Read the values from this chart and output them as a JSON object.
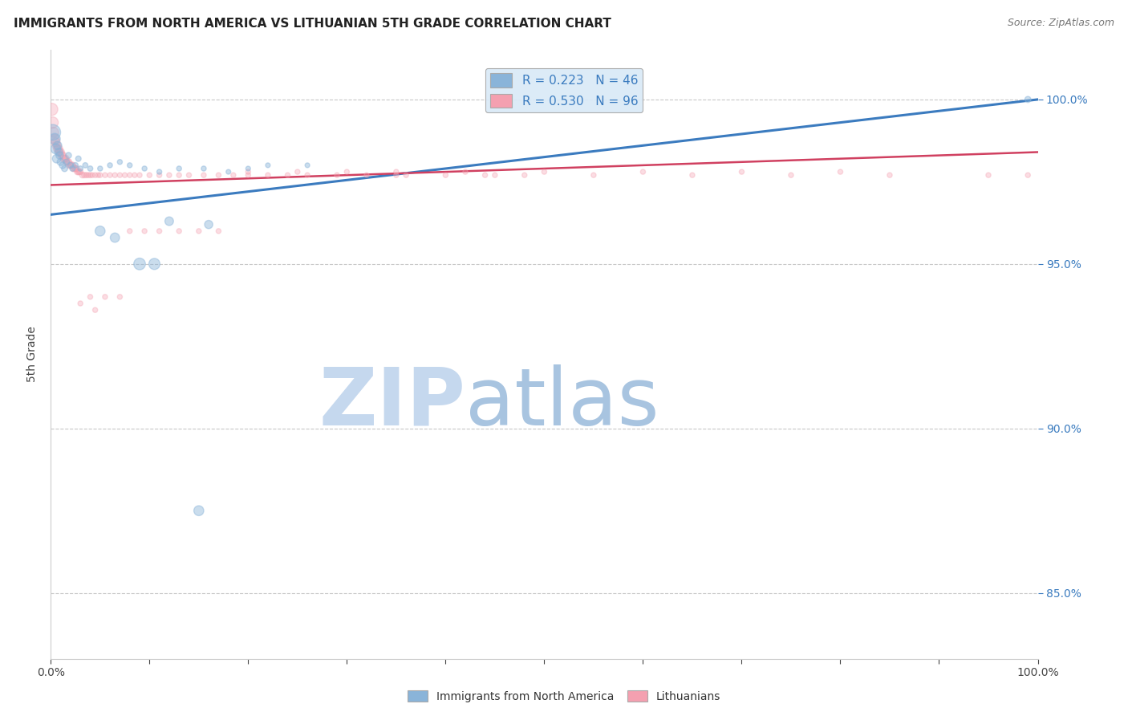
{
  "title": "IMMIGRANTS FROM NORTH AMERICA VS LITHUANIAN 5TH GRADE CORRELATION CHART",
  "source": "Source: ZipAtlas.com",
  "ylabel": "5th Grade",
  "xlim": [
    0.0,
    1.0
  ],
  "ylim": [
    0.83,
    1.015
  ],
  "xticks": [
    0.0,
    0.1,
    0.2,
    0.3,
    0.4,
    0.5,
    0.6,
    0.7,
    0.8,
    0.9,
    1.0
  ],
  "xticklabels": [
    "0.0%",
    "",
    "",
    "",
    "",
    "",
    "",
    "",
    "",
    "",
    "100.0%"
  ],
  "yticks": [
    0.85,
    0.9,
    0.95,
    1.0
  ],
  "yticklabels": [
    "85.0%",
    "90.0%",
    "95.0%",
    "100.0%"
  ],
  "blue_color": "#8ab4d9",
  "pink_color": "#f4a0b0",
  "blue_line_color": "#3b7bbf",
  "pink_line_color": "#d04060",
  "legend_box_color": "#daeaf7",
  "grid_color": "#c8c8c8",
  "watermark_zip_color": "#c5d8ee",
  "watermark_atlas_color": "#b8cee8",
  "r_blue": 0.223,
  "n_blue": 46,
  "r_pink": 0.53,
  "n_pink": 96,
  "blue_line_y_start": 0.965,
  "blue_line_y_end": 1.0,
  "pink_line_y_start": 0.974,
  "pink_line_y_end": 0.984,
  "blue_scatter_x": [
    0.002,
    0.004,
    0.005,
    0.006,
    0.007,
    0.008,
    0.009,
    0.01,
    0.012,
    0.014,
    0.016,
    0.018,
    0.02,
    0.022,
    0.025,
    0.028,
    0.03,
    0.035,
    0.04,
    0.05,
    0.06,
    0.07,
    0.08,
    0.095,
    0.11,
    0.13,
    0.155,
    0.18,
    0.2,
    0.22,
    0.26,
    0.05,
    0.065,
    0.12,
    0.16,
    0.09,
    0.105,
    0.15,
    0.99
  ],
  "blue_scatter_y": [
    0.99,
    0.988,
    0.985,
    0.982,
    0.986,
    0.984,
    0.983,
    0.981,
    0.98,
    0.979,
    0.981,
    0.983,
    0.98,
    0.979,
    0.98,
    0.982,
    0.979,
    0.98,
    0.979,
    0.979,
    0.98,
    0.981,
    0.98,
    0.979,
    0.978,
    0.979,
    0.979,
    0.978,
    0.979,
    0.98,
    0.98,
    0.96,
    0.958,
    0.963,
    0.962,
    0.95,
    0.95,
    0.875,
    1.0
  ],
  "blue_scatter_sizes": [
    200,
    100,
    80,
    60,
    55,
    50,
    45,
    40,
    35,
    30,
    28,
    28,
    26,
    24,
    24,
    24,
    22,
    22,
    22,
    20,
    20,
    20,
    20,
    20,
    20,
    20,
    20,
    18,
    18,
    18,
    18,
    80,
    70,
    60,
    55,
    110,
    100,
    80,
    30
  ],
  "pink_scatter_x": [
    0.001,
    0.002,
    0.003,
    0.004,
    0.005,
    0.006,
    0.007,
    0.008,
    0.009,
    0.01,
    0.011,
    0.012,
    0.013,
    0.014,
    0.015,
    0.016,
    0.017,
    0.018,
    0.019,
    0.02,
    0.021,
    0.022,
    0.023,
    0.024,
    0.025,
    0.026,
    0.027,
    0.028,
    0.029,
    0.03,
    0.032,
    0.034,
    0.036,
    0.038,
    0.04,
    0.042,
    0.045,
    0.048,
    0.05,
    0.055,
    0.06,
    0.065,
    0.07,
    0.075,
    0.08,
    0.085,
    0.09,
    0.1,
    0.11,
    0.12,
    0.13,
    0.14,
    0.155,
    0.17,
    0.185,
    0.2,
    0.22,
    0.24,
    0.26,
    0.29,
    0.32,
    0.36,
    0.4,
    0.44,
    0.48,
    0.08,
    0.095,
    0.11,
    0.13,
    0.15,
    0.17,
    0.055,
    0.07,
    0.045,
    0.03,
    0.04,
    0.2,
    0.25,
    0.3,
    0.35,
    0.42,
    0.5,
    0.6,
    0.7,
    0.8,
    0.35,
    0.45,
    0.55,
    0.65,
    0.75,
    0.85,
    0.95,
    0.99
  ],
  "pink_scatter_y": [
    0.997,
    0.993,
    0.99,
    0.988,
    0.987,
    0.986,
    0.985,
    0.985,
    0.984,
    0.984,
    0.983,
    0.983,
    0.982,
    0.982,
    0.982,
    0.981,
    0.981,
    0.981,
    0.98,
    0.98,
    0.98,
    0.98,
    0.979,
    0.979,
    0.979,
    0.979,
    0.978,
    0.978,
    0.978,
    0.978,
    0.977,
    0.977,
    0.977,
    0.977,
    0.977,
    0.977,
    0.977,
    0.977,
    0.977,
    0.977,
    0.977,
    0.977,
    0.977,
    0.977,
    0.977,
    0.977,
    0.977,
    0.977,
    0.977,
    0.977,
    0.977,
    0.977,
    0.977,
    0.977,
    0.977,
    0.977,
    0.977,
    0.977,
    0.977,
    0.977,
    0.977,
    0.977,
    0.977,
    0.977,
    0.977,
    0.96,
    0.96,
    0.96,
    0.96,
    0.96,
    0.96,
    0.94,
    0.94,
    0.936,
    0.938,
    0.94,
    0.978,
    0.978,
    0.978,
    0.978,
    0.978,
    0.978,
    0.978,
    0.978,
    0.978,
    0.977,
    0.977,
    0.977,
    0.977,
    0.977,
    0.977,
    0.977,
    0.977
  ],
  "pink_scatter_sizes": [
    120,
    100,
    80,
    70,
    65,
    60,
    55,
    55,
    50,
    48,
    45,
    43,
    42,
    40,
    40,
    38,
    37,
    36,
    35,
    34,
    33,
    32,
    31,
    30,
    30,
    29,
    28,
    28,
    27,
    26,
    25,
    24,
    23,
    22,
    22,
    21,
    21,
    20,
    20,
    20,
    20,
    20,
    20,
    20,
    20,
    20,
    20,
    20,
    20,
    20,
    20,
    20,
    20,
    20,
    20,
    20,
    20,
    20,
    20,
    20,
    20,
    20,
    20,
    20,
    20,
    20,
    20,
    20,
    20,
    20,
    20,
    20,
    20,
    20,
    20,
    20,
    20,
    20,
    20,
    20,
    20,
    20,
    20,
    20,
    20,
    20,
    20,
    20,
    20,
    20,
    20,
    20,
    20
  ]
}
